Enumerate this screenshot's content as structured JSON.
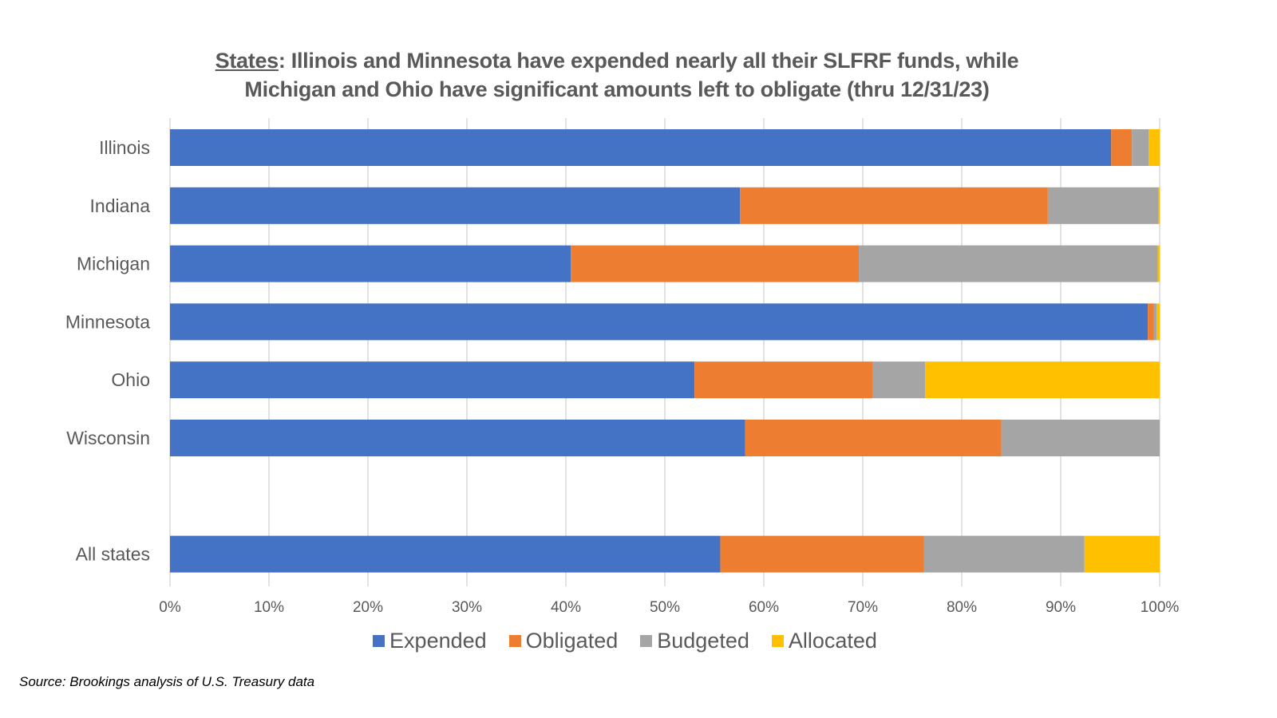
{
  "chart_data": {
    "type": "bar",
    "orientation": "horizontal",
    "stacked": true,
    "title_lead": "States",
    "title_rest": ": Illinois and Minnesota have expended nearly all their SLFRF funds, while",
    "title_line2": "Michigan and Ohio have significant amounts left to obligate (thru 12/31/23)",
    "categories": [
      "Illinois",
      "Indiana",
      "Michigan",
      "Minnesota",
      "Ohio",
      "Wisconsin",
      "",
      "All states"
    ],
    "series": [
      {
        "name": "Expended",
        "color": "#4472C4",
        "values": [
          95.1,
          57.6,
          40.5,
          98.8,
          53.0,
          58.1,
          null,
          55.6
        ]
      },
      {
        "name": "Obligated",
        "color": "#ED7D31",
        "values": [
          2.1,
          31.1,
          29.1,
          0.6,
          18.0,
          25.9,
          null,
          20.6
        ]
      },
      {
        "name": "Budgeted",
        "color": "#A5A5A5",
        "values": [
          1.7,
          11.2,
          30.2,
          0.3,
          5.3,
          16.0,
          null,
          16.2
        ]
      },
      {
        "name": "Allocated",
        "color": "#FFC000",
        "values": [
          1.1,
          0.1,
          0.2,
          0.3,
          23.7,
          0.0,
          null,
          7.6
        ]
      }
    ],
    "xlim": [
      0,
      100
    ],
    "x_ticks": [
      "0%",
      "10%",
      "20%",
      "30%",
      "40%",
      "50%",
      "60%",
      "70%",
      "80%",
      "90%",
      "100%"
    ],
    "xlabel": "",
    "ylabel": "",
    "grid": true,
    "legend_position": "bottom"
  },
  "source": "Source: Brookings analysis of U.S. Treasury data"
}
